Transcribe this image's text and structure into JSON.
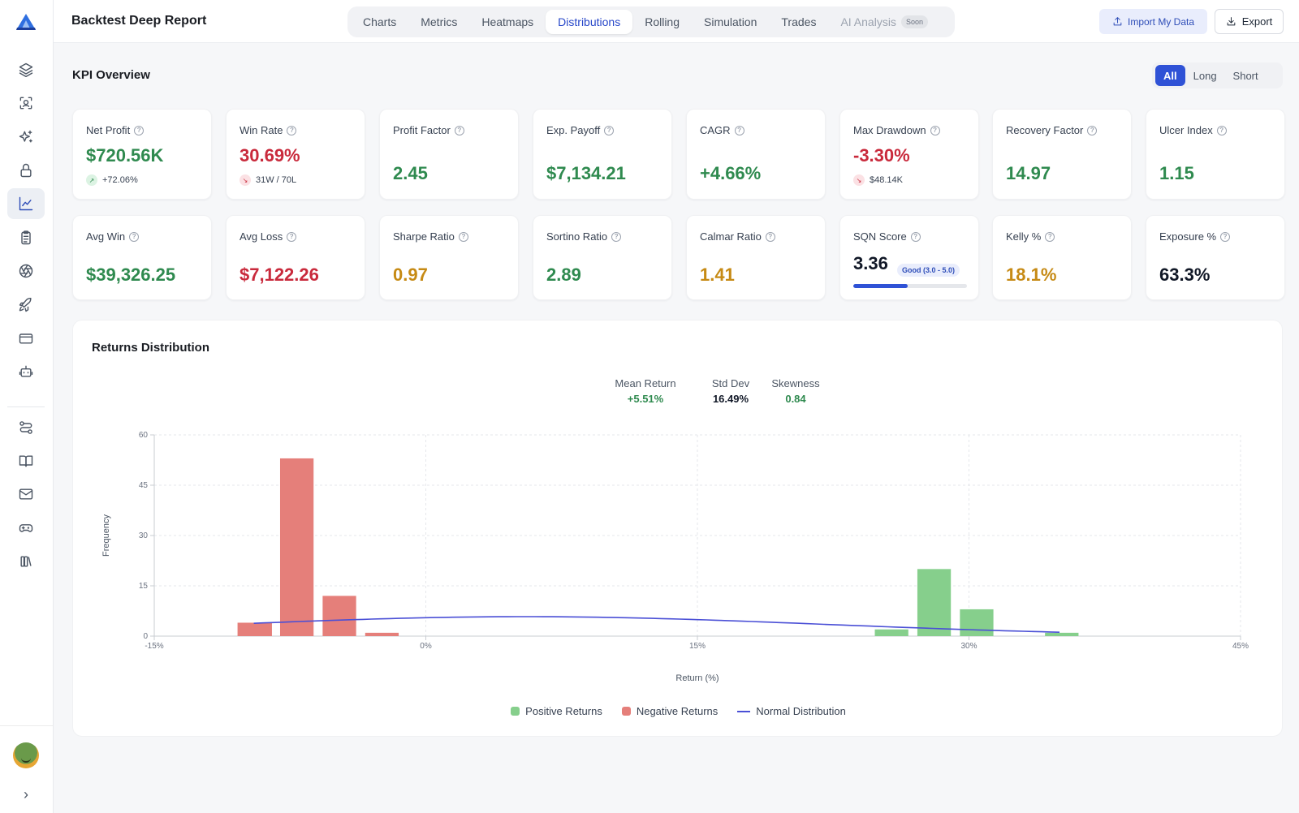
{
  "app": {
    "title": "Backtest Deep Report",
    "tabs": [
      {
        "label": "Charts"
      },
      {
        "label": "Metrics"
      },
      {
        "label": "Heatmaps"
      },
      {
        "label": "Distributions",
        "active": true
      },
      {
        "label": "Rolling"
      },
      {
        "label": "Simulation"
      },
      {
        "label": "Trades"
      },
      {
        "label": "AI Analysis",
        "badge": "Soon",
        "disabled": true
      }
    ],
    "import_label": "Import My Data",
    "export_label": "Export"
  },
  "sidebar": {
    "icons": [
      "layers-icon",
      "scan-icon",
      "sparkles-icon",
      "lock-icon",
      "chart-line-icon",
      "clipboard-icon",
      "aperture-icon",
      "rocket-icon",
      "credit-card-icon",
      "bot-icon",
      "route-icon",
      "book-icon",
      "mail-icon",
      "gamepad-icon",
      "library-icon"
    ],
    "active": "chart-line-icon"
  },
  "kpi": {
    "title": "KPI Overview",
    "filters": [
      "All",
      "Long",
      "Short"
    ],
    "active_filter": "All",
    "cards": [
      {
        "label": "Net Profit",
        "value": "$720.56K",
        "color": "green",
        "sub": "+72.06%",
        "trend": "up"
      },
      {
        "label": "Win Rate",
        "value": "30.69%",
        "color": "red",
        "sub": "31W / 70L",
        "trend": "down"
      },
      {
        "label": "Profit Factor",
        "value": "2.45",
        "color": "green"
      },
      {
        "label": "Exp. Payoff",
        "value": "$7,134.21",
        "color": "green"
      },
      {
        "label": "CAGR",
        "value": "+4.66%",
        "color": "green"
      },
      {
        "label": "Max Drawdown",
        "value": "-3.30%",
        "color": "red",
        "sub": "$48.14K",
        "trend": "down"
      },
      {
        "label": "Recovery Factor",
        "value": "14.97",
        "color": "green"
      },
      {
        "label": "Ulcer Index",
        "value": "1.15",
        "color": "green"
      },
      {
        "label": "Avg Win",
        "value": "$39,326.25",
        "color": "green"
      },
      {
        "label": "Avg Loss",
        "value": "$7,122.26",
        "color": "red"
      },
      {
        "label": "Sharpe Ratio",
        "value": "0.97",
        "color": "amber"
      },
      {
        "label": "Sortino Ratio",
        "value": "2.89",
        "color": "green"
      },
      {
        "label": "Calmar Ratio",
        "value": "1.41",
        "color": "amber"
      },
      {
        "label": "SQN Score",
        "value": "3.36",
        "color": "dark",
        "badge": "Good (3.0 - 5.0)",
        "progress": 0.48
      },
      {
        "label": "Kelly %",
        "value": "18.1%",
        "color": "amber"
      },
      {
        "label": "Exposure %",
        "value": "63.3%",
        "color": "dark"
      }
    ]
  },
  "distribution": {
    "title": "Returns Distribution",
    "stats": [
      {
        "label": "Mean Return",
        "value": "+5.51%",
        "color": "green"
      },
      {
        "label": "Std Dev",
        "value": "16.49%",
        "color": "dark"
      },
      {
        "label": "Skewness",
        "value": "0.84",
        "color": "green"
      }
    ],
    "legend": {
      "positive": "Positive Returns",
      "negative": "Negative Returns",
      "normal": "Normal Distribution"
    }
  },
  "colors": {
    "positive": "#86cf8c",
    "negative": "#e57f7a",
    "normal": "#4a4fd6",
    "accent": "#2f52d6"
  },
  "chart_data": {
    "type": "bar",
    "title": "Returns Distribution",
    "xlabel": "Return (%)",
    "ylabel": "Frequency",
    "xlim": [
      -15,
      45
    ],
    "ylim": [
      0,
      60
    ],
    "x_ticks": [
      -15,
      0,
      15,
      30,
      45
    ],
    "x_tick_labels": [
      "-15%",
      "0%",
      "15%",
      "30%",
      "45%"
    ],
    "y_ticks": [
      0,
      15,
      30,
      45,
      60
    ],
    "bin_width": 2.35,
    "series": [
      {
        "name": "Negative Returns",
        "bins": [
          {
            "x0": -10.4,
            "x1": -8.5,
            "value": 4
          },
          {
            "x0": -8.05,
            "x1": -6.2,
            "value": 53
          },
          {
            "x0": -5.7,
            "x1": -3.85,
            "value": 12
          },
          {
            "x0": -3.35,
            "x1": -1.5,
            "value": 1
          }
        ]
      },
      {
        "name": "Positive Returns",
        "bins": [
          {
            "x0": 24.8,
            "x1": 26.65,
            "value": 2
          },
          {
            "x0": 27.15,
            "x1": 29.0,
            "value": 20
          },
          {
            "x0": 29.5,
            "x1": 31.35,
            "value": 8
          },
          {
            "x0": 34.2,
            "x1": 36.05,
            "value": 1
          }
        ]
      },
      {
        "name": "Normal Distribution",
        "type": "line",
        "mean": 5.51,
        "std": 16.49,
        "x_range": [
          -9.5,
          35.0
        ],
        "peak": 5.8
      }
    ],
    "grid": true,
    "legend_position": "bottom-center"
  }
}
